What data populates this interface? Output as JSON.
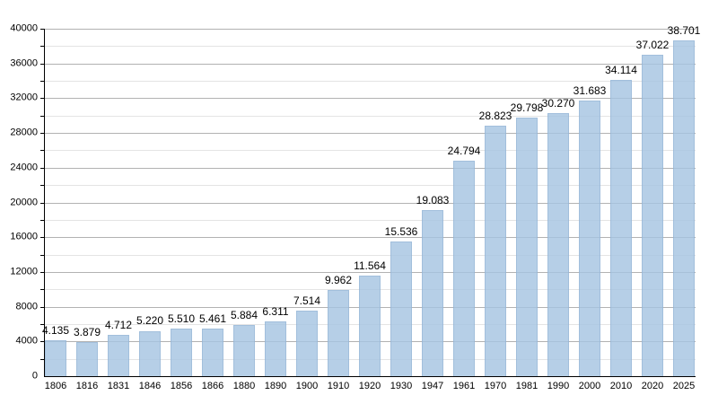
{
  "chart_data": {
    "type": "bar",
    "title": "",
    "xlabel": "",
    "ylabel": "",
    "categories": [
      "1806",
      "1816",
      "1831",
      "1846",
      "1856",
      "1866",
      "1880",
      "1890",
      "1900",
      "1910",
      "1920",
      "1930",
      "1947",
      "1961",
      "1970",
      "1981",
      "1990",
      "2000",
      "2010",
      "2020",
      "2025"
    ],
    "values": [
      4135,
      3879,
      4712,
      5220,
      5510,
      5461,
      5884,
      6311,
      7514,
      9962,
      11564,
      15536,
      19083,
      24794,
      28823,
      29798,
      30270,
      31683,
      34114,
      37022,
      38701
    ],
    "value_labels": [
      "4.135",
      "3.879",
      "4.712",
      "5.220",
      "5.510",
      "5.461",
      "5.884",
      "6.311",
      "7.514",
      "9.962",
      "11.564",
      "15.536",
      "19.083",
      "24.794",
      "28.823",
      "29.798",
      "30.270",
      "31.683",
      "34.114",
      "37.022",
      "38.701"
    ],
    "ylim": [
      0,
      40000
    ],
    "y_major_step": 4000,
    "y_minor_step": 2000,
    "y_tick_labels": [
      "0",
      "4000",
      "8000",
      "12000",
      "16000",
      "20000",
      "24000",
      "28000",
      "32000",
      "36000",
      "40000"
    ],
    "grid": "major and minor horizontal",
    "legend": "none",
    "colors": {
      "bar_fill": "rgba(166,196,226,0.82)",
      "bar_border": "rgba(125,160,200,0.35)",
      "grid_major": "#b2b2b2",
      "grid_minor": "#e4e4e4",
      "axis": "#000000",
      "text": "#000000",
      "background": "#ffffff"
    }
  }
}
